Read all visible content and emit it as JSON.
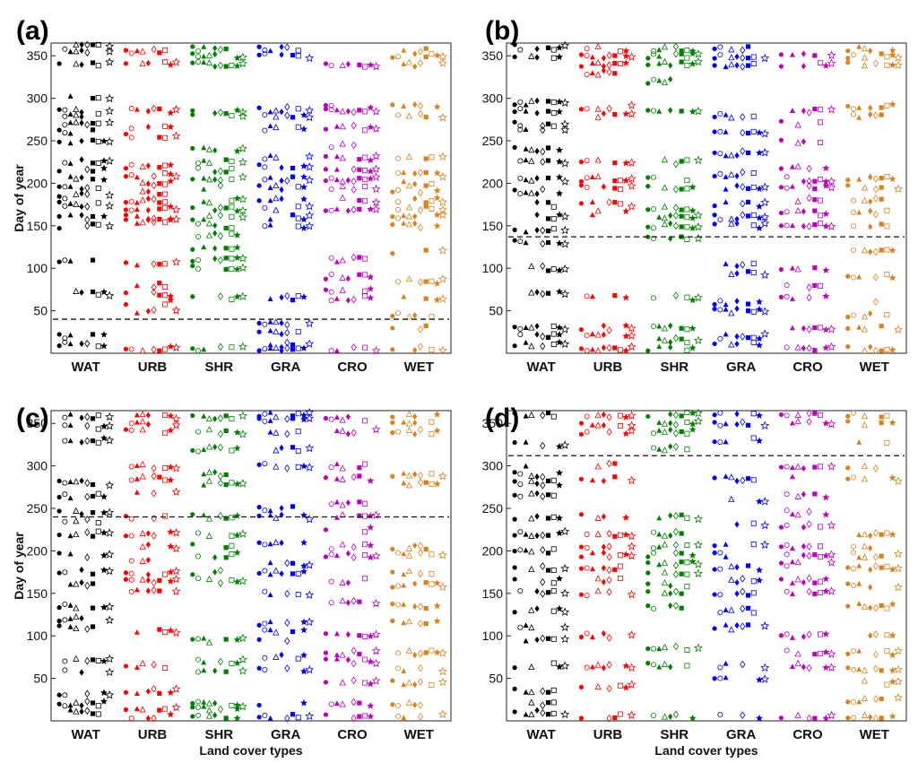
{
  "figure": {
    "x_axis_label": "Land cover types",
    "y_axis_label": "Day of year"
  },
  "chart_data": [
    {
      "panel": "(a)",
      "type": "scatter",
      "categories": [
        "WAT",
        "URB",
        "SHR",
        "GRA",
        "CRO",
        "WET"
      ],
      "ylim": [
        0,
        365
      ],
      "yticks": [
        50,
        100,
        150,
        200,
        250,
        300,
        350
      ],
      "ylabel": "Day of year",
      "xlabel": "",
      "threshold_doy": 40,
      "bands": {
        "WAT": [
          10,
          20,
          70,
          110,
          150,
          160,
          175,
          185,
          195,
          205,
          215,
          225,
          250,
          260,
          270,
          280,
          285,
          300,
          340,
          355,
          362
        ],
        "URB": [
          5,
          50,
          60,
          70,
          80,
          105,
          155,
          160,
          170,
          180,
          190,
          200,
          210,
          220,
          255,
          265,
          285,
          340,
          355
        ],
        "SHR": [
          5,
          65,
          100,
          110,
          125,
          140,
          150,
          160,
          170,
          180,
          195,
          205,
          215,
          225,
          240,
          280,
          285,
          340,
          350,
          358
        ],
        "GRA": [
          5,
          10,
          25,
          35,
          65,
          150,
          160,
          170,
          180,
          195,
          205,
          220,
          230,
          265,
          280,
          287,
          350,
          358
        ],
        "CRO": [
          5,
          65,
          75,
          90,
          110,
          170,
          180,
          195,
          205,
          215,
          230,
          245,
          265,
          285,
          290,
          340
        ],
        "WET": [
          5,
          30,
          45,
          65,
          85,
          120,
          150,
          160,
          170,
          180,
          190,
          200,
          210,
          230,
          280,
          290,
          340,
          350,
          358
        ]
      }
    },
    {
      "panel": "(b)",
      "type": "scatter",
      "categories": [
        "WAT",
        "URB",
        "SHR",
        "GRA",
        "CRO",
        "WET"
      ],
      "ylim": [
        0,
        365
      ],
      "yticks": [
        50,
        100,
        150,
        200,
        250,
        300,
        350
      ],
      "ylabel": "",
      "xlabel": "",
      "threshold_doy": 137,
      "bands": {
        "WAT": [
          10,
          20,
          30,
          70,
          100,
          130,
          145,
          160,
          175,
          190,
          205,
          225,
          240,
          265,
          270,
          285,
          295,
          350,
          360
        ],
        "URB": [
          5,
          20,
          30,
          65,
          165,
          175,
          195,
          205,
          225,
          280,
          290,
          330,
          340,
          350,
          358
        ],
        "SHR": [
          5,
          15,
          30,
          65,
          135,
          150,
          160,
          170,
          195,
          205,
          225,
          285,
          320,
          340,
          350,
          358
        ],
        "GRA": [
          10,
          20,
          50,
          60,
          95,
          105,
          150,
          160,
          175,
          195,
          210,
          235,
          260,
          280,
          340,
          350,
          358
        ],
        "CRO": [
          5,
          30,
          65,
          80,
          100,
          150,
          165,
          180,
          195,
          205,
          220,
          250,
          270,
          285,
          340,
          350
        ],
        "WET": [
          5,
          30,
          45,
          60,
          90,
          120,
          150,
          165,
          180,
          195,
          205,
          280,
          290,
          340,
          350,
          358
        ]
      }
    },
    {
      "panel": "(c)",
      "type": "scatter",
      "categories": [
        "WAT",
        "URB",
        "SHR",
        "GRA",
        "CRO",
        "WET"
      ],
      "ylim": [
        0,
        365
      ],
      "yticks": [
        50,
        100,
        150,
        200,
        250,
        300,
        350
      ],
      "ylabel": "Day of year",
      "xlabel": "Land cover types",
      "threshold_doy": 240,
      "bands": {
        "WAT": [
          10,
          20,
          30,
          60,
          70,
          110,
          120,
          135,
          160,
          175,
          195,
          220,
          235,
          245,
          265,
          280,
          330,
          345,
          358
        ],
        "URB": [
          5,
          15,
          35,
          65,
          105,
          155,
          165,
          175,
          190,
          205,
          220,
          240,
          270,
          285,
          300,
          340,
          350,
          358
        ],
        "SHR": [
          5,
          15,
          20,
          60,
          70,
          95,
          165,
          175,
          195,
          205,
          220,
          240,
          280,
          290,
          320,
          340,
          358
        ],
        "GRA": [
          5,
          20,
          60,
          75,
          95,
          105,
          115,
          150,
          175,
          185,
          210,
          240,
          250,
          300,
          320,
          340,
          355,
          360
        ],
        "CRO": [
          5,
          20,
          45,
          70,
          80,
          100,
          140,
          165,
          195,
          205,
          225,
          240,
          255,
          285,
          300,
          340,
          355
        ],
        "WET": [
          5,
          20,
          45,
          60,
          80,
          115,
          135,
          160,
          175,
          195,
          205,
          280,
          290,
          340,
          350,
          358
        ]
      }
    },
    {
      "panel": "(d)",
      "type": "scatter",
      "categories": [
        "WAT",
        "URB",
        "SHR",
        "GRA",
        "CRO",
        "WET"
      ],
      "ylim": [
        0,
        365
      ],
      "yticks": [
        50,
        100,
        150,
        200,
        250,
        300,
        350
      ],
      "ylabel": "",
      "xlabel": "Land cover types",
      "threshold_doy": 312,
      "bands": {
        "WAT": [
          10,
          20,
          35,
          65,
          95,
          110,
          130,
          150,
          165,
          180,
          200,
          220,
          240,
          265,
          280,
          290,
          300,
          325,
          360
        ],
        "URB": [
          5,
          40,
          65,
          100,
          150,
          165,
          180,
          195,
          205,
          220,
          240,
          285,
          300,
          340,
          350,
          360
        ],
        "SHR": [
          5,
          65,
          85,
          135,
          150,
          160,
          175,
          185,
          195,
          205,
          220,
          240,
          320,
          340,
          350,
          360
        ],
        "GRA": [
          5,
          50,
          65,
          110,
          130,
          150,
          165,
          180,
          195,
          205,
          230,
          260,
          285,
          330,
          350,
          360
        ],
        "CRO": [
          5,
          65,
          80,
          100,
          150,
          165,
          185,
          195,
          205,
          230,
          245,
          265,
          285,
          300,
          350,
          360
        ],
        "WET": [
          5,
          25,
          45,
          60,
          80,
          100,
          135,
          160,
          180,
          195,
          205,
          220,
          285,
          300,
          330,
          350,
          360
        ]
      }
    }
  ],
  "series_colors": {
    "WAT": "#000000",
    "URB": "#ff0000",
    "SHR": "#008000",
    "GRA": "#0000ff",
    "CRO": "#bf00bf",
    "WET": "#d9821c"
  },
  "markers": [
    "circle-filled",
    "circle-open",
    "triangle-filled",
    "triangle-open",
    "diamond-filled",
    "diamond-open",
    "square-filled",
    "square-open",
    "star-filled",
    "star-open"
  ]
}
